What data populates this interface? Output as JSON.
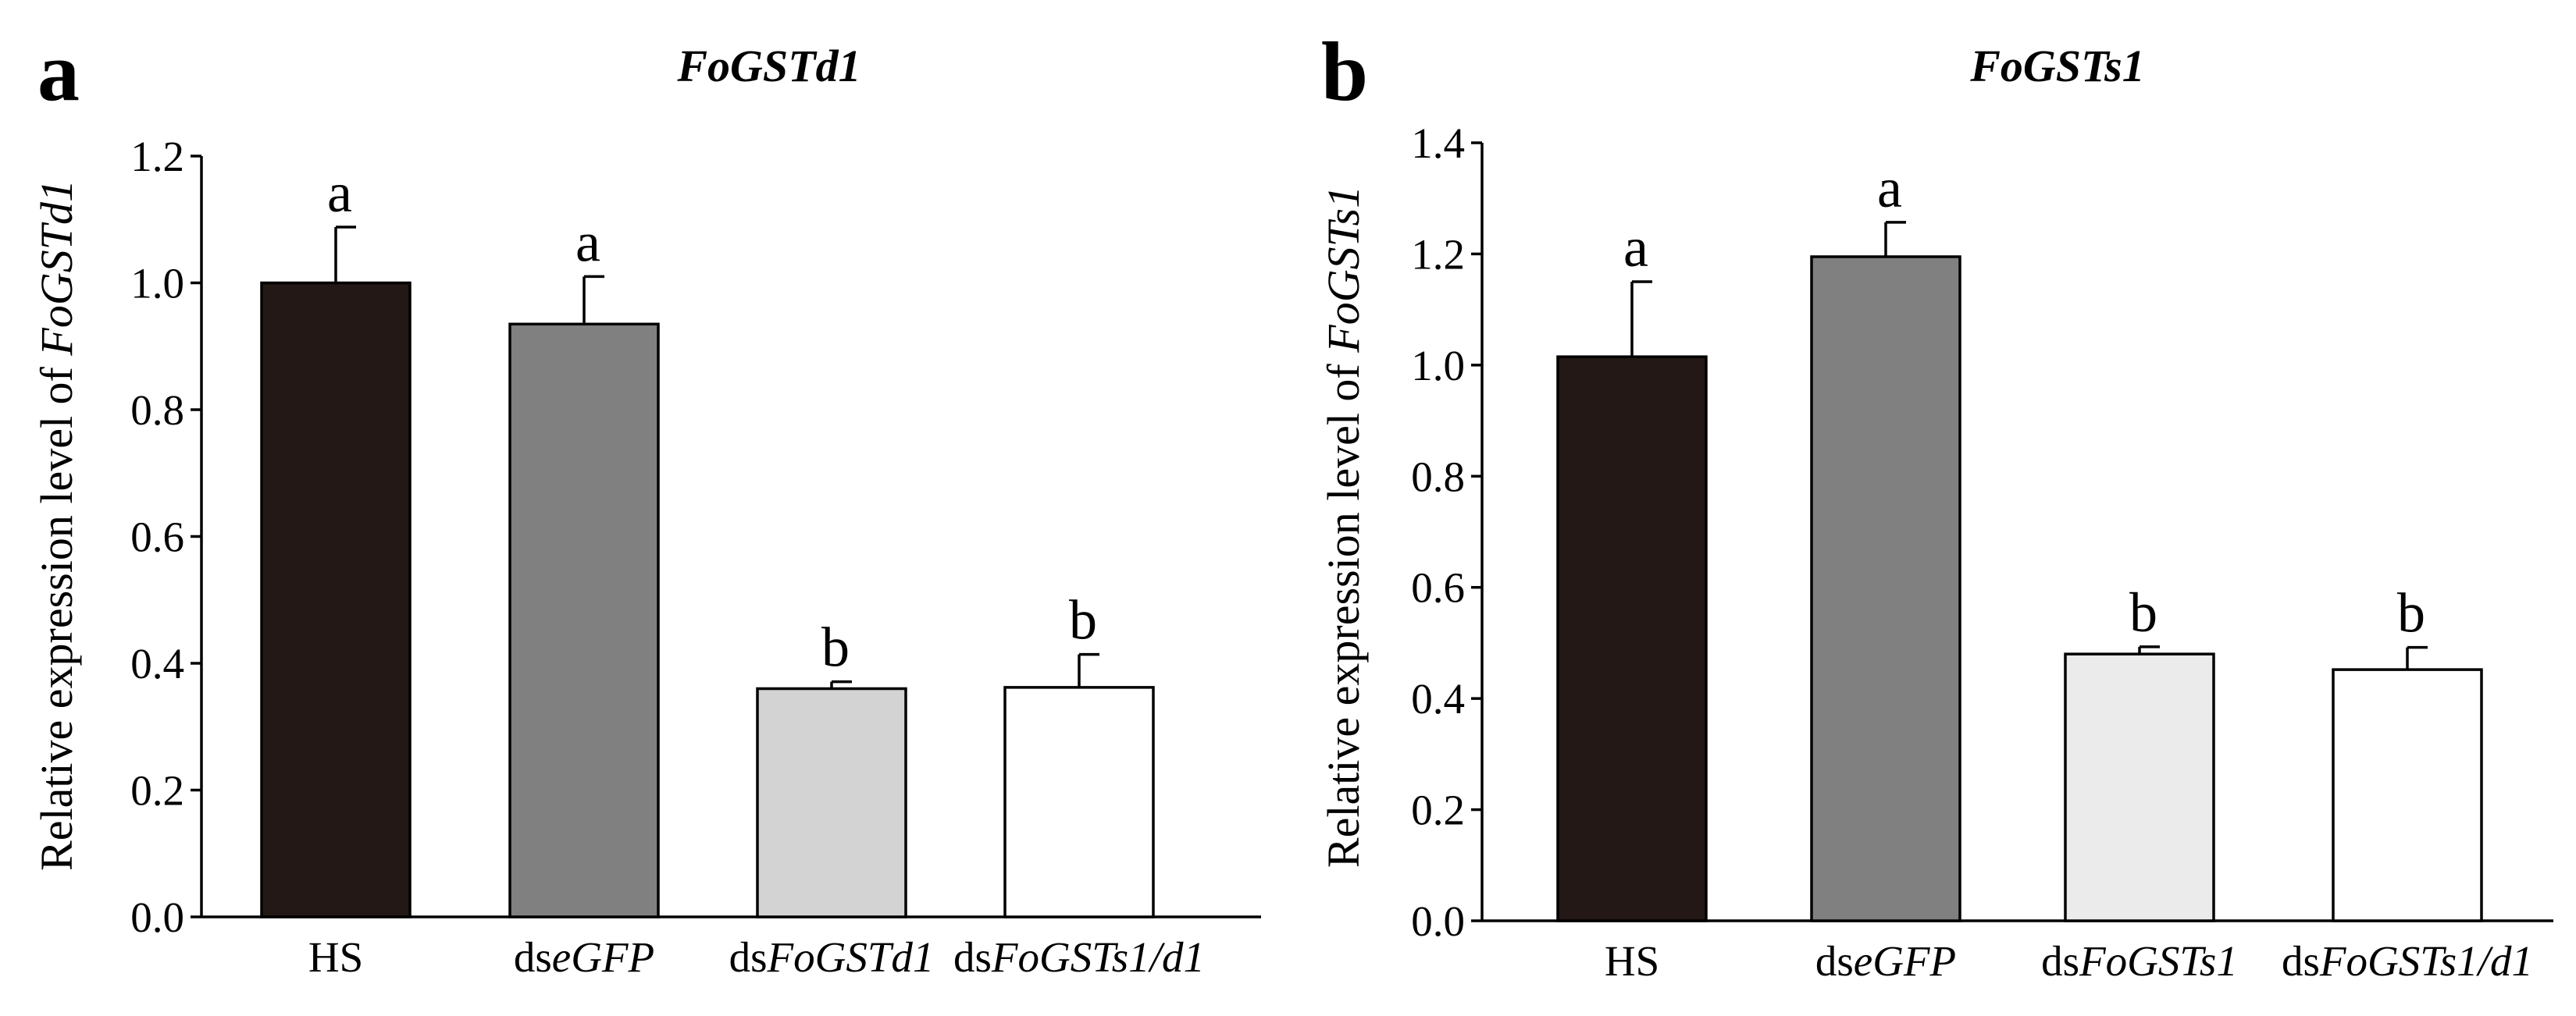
{
  "chart_data": [
    {
      "type": "bar",
      "panel": "a",
      "title": "FoGSTd1",
      "ylabel_prefix": "Relative expression level of ",
      "ylabel_gene": "FoGSTd1",
      "xlabel": "",
      "ylim": [
        0,
        1.2
      ],
      "yticks": [
        "0.0",
        "0.2",
        "0.4",
        "0.6",
        "0.8",
        "1.0",
        "1.2"
      ],
      "categories": [
        {
          "prefix": "HS",
          "italic": ""
        },
        {
          "prefix": "ds",
          "italic": "eGFP"
        },
        {
          "prefix": "ds",
          "italic": "FoGSTd1"
        },
        {
          "prefix": "ds",
          "italic": "FoGSTs1/d1"
        }
      ],
      "values": [
        1.0,
        0.935,
        0.36,
        0.362
      ],
      "errors": [
        0.088,
        0.075,
        0.011,
        0.052
      ],
      "significance": [
        "a",
        "a",
        "b",
        "b"
      ],
      "colors": [
        "#231815",
        "#808080",
        "#d3d3d3",
        "#ffffff"
      ]
    },
    {
      "type": "bar",
      "panel": "b",
      "title": "FoGSTs1",
      "ylabel_prefix": "Relative expression level of ",
      "ylabel_gene": "FoGSTs1",
      "xlabel": "",
      "ylim": [
        0,
        1.4
      ],
      "yticks": [
        "0.0",
        "0.2",
        "0.4",
        "0.6",
        "0.8",
        "1.0",
        "1.2",
        "1.4"
      ],
      "categories": [
        {
          "prefix": "HS",
          "italic": ""
        },
        {
          "prefix": "ds",
          "italic": "eGFP"
        },
        {
          "prefix": "ds",
          "italic": "FoGSTs1"
        },
        {
          "prefix": "ds",
          "italic": "FoGSTs1/d1"
        }
      ],
      "values": [
        1.015,
        1.195,
        0.48,
        0.452
      ],
      "errors": [
        0.135,
        0.062,
        0.013,
        0.04
      ],
      "significance": [
        "a",
        "a",
        "b",
        "b"
      ],
      "colors": [
        "#231815",
        "#808080",
        "#ebebeb",
        "#ffffff"
      ]
    }
  ]
}
